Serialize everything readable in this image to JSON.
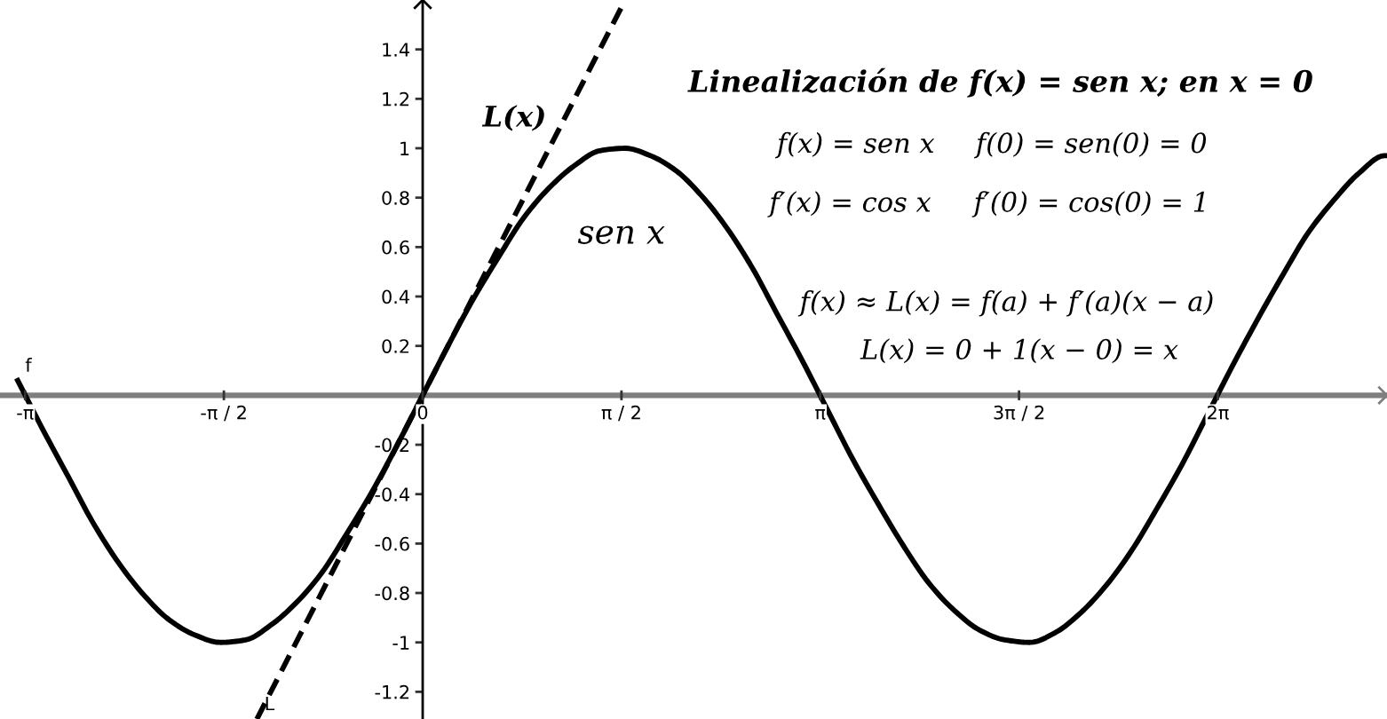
{
  "chart_data": {
    "type": "line",
    "title": "Linealización de f(x) = sen x; en x = 0",
    "xlim": [
      -3.34,
      7.62
    ],
    "ylim": [
      -1.31,
      1.6
    ],
    "xticks": [
      {
        "value": -3.1416,
        "label": "-π"
      },
      {
        "value": -1.5708,
        "label": "-π / 2"
      },
      0,
      {
        "value": 1.5708,
        "label": "π / 2"
      },
      {
        "value": 3.1416,
        "label": "π"
      },
      {
        "value": 4.7124,
        "label": "3π / 2"
      },
      {
        "value": 6.2832,
        "label": "2π"
      }
    ],
    "yticks": [
      -1.2,
      -1,
      -0.8,
      -0.6,
      -0.4,
      -0.2,
      0.2,
      0.4,
      0.6,
      0.8,
      1,
      1.2,
      1.4
    ],
    "series": [
      {
        "name": "f",
        "color": "#000000",
        "line_style": "solid",
        "x": [
          -3.2,
          -3.0,
          -2.8,
          -2.6,
          -2.4,
          -2.2,
          -2.0,
          -1.8,
          -1.6,
          -1.4,
          -1.2,
          -1.0,
          -0.8,
          -0.6,
          -0.4,
          -0.2,
          0,
          0.2,
          0.4,
          0.6,
          0.8,
          1.0,
          1.2,
          1.4,
          1.6,
          1.8,
          2.0,
          2.2,
          2.4,
          2.6,
          2.8,
          3.0,
          3.2,
          3.4,
          3.6,
          3.8,
          4.0,
          4.2,
          4.4,
          4.6,
          4.8,
          5.0,
          5.2,
          5.4,
          5.6,
          5.8,
          6.0,
          6.2,
          6.4,
          6.6,
          6.8,
          7.0,
          7.2,
          7.4,
          7.6,
          7.62
        ],
        "values": [
          0.06,
          -0.14,
          -0.33,
          -0.52,
          -0.68,
          -0.81,
          -0.91,
          -0.97,
          -1.0,
          -0.99,
          -0.93,
          -0.84,
          -0.72,
          -0.56,
          -0.39,
          -0.2,
          0,
          0.2,
          0.39,
          0.56,
          0.72,
          0.84,
          0.93,
          0.99,
          1.0,
          0.97,
          0.91,
          0.81,
          0.68,
          0.52,
          0.33,
          0.14,
          -0.06,
          -0.26,
          -0.44,
          -0.61,
          -0.76,
          -0.87,
          -0.95,
          -0.99,
          -1.0,
          -0.96,
          -0.88,
          -0.77,
          -0.63,
          -0.46,
          -0.28,
          -0.08,
          0.12,
          0.31,
          0.49,
          0.66,
          0.79,
          0.9,
          0.97,
          0.97
        ]
      },
      {
        "name": "L",
        "color": "#000000",
        "line_style": "dashed",
        "x": [
          -1.31,
          1.6
        ],
        "values": [
          -1.31,
          1.6
        ]
      }
    ],
    "annotations": [
      "f(x) = sen x",
      "f(0) = sen(0) = 0",
      "f′(x) = cos x",
      "f′(0) = cos(0) = 1",
      "f(x) ≈ L(x) = f(a) + f′(a)(x − a)",
      "L(x) = 0 + 1(x − 0) = x",
      "sen x",
      "L(x)"
    ]
  }
}
